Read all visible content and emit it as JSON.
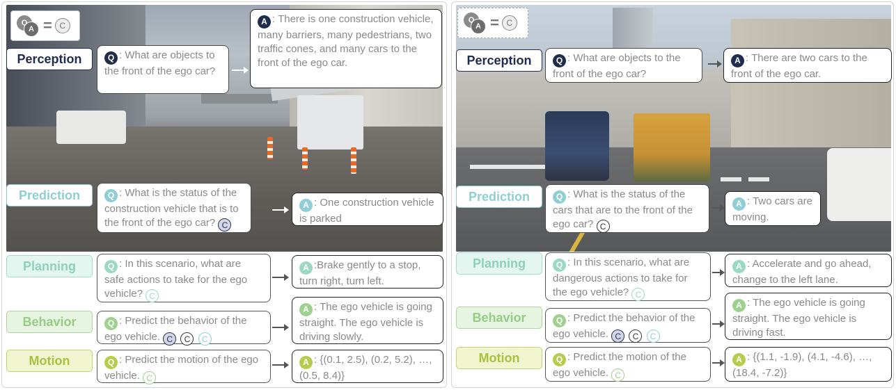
{
  "legend": {
    "q": "Q",
    "a": "A",
    "equals": "=",
    "c": "C"
  },
  "tags": {
    "perception": "Perception",
    "prediction": "Prediction",
    "planning": "Planning",
    "behavior": "Behavior",
    "motion": "Motion"
  },
  "icons": {
    "q": "Q",
    "a": "A",
    "c": "C"
  },
  "left": {
    "perception_q": ": What are objects to the front of the ego car?",
    "perception_a": ": There is one construction vehicle, many barriers, many pedestrians, two traffic cones, and many cars to the front of the ego car.",
    "prediction_q": ": What is the status of the construction vehicle that is to the front of the ego car?",
    "prediction_a": ": One construction vehicle is parked",
    "planning_q": ": In this scenario, what are safe actions to take for the ego vehicle?",
    "planning_a": ":Brake gently to a stop, turn right, turn left.",
    "behavior_q": ": Predict the behavior of the ego vehicle.",
    "behavior_a": ": The ego vehicle is going straight. The ego vehicle is driving slowly.",
    "motion_q": ": Predict the motion of the ego vehicle.",
    "motion_a": ": {(0.1, 2.5), (0.2, 5.2), …, (0.5, 8.4)}"
  },
  "right": {
    "perception_q": ": What are objects to the front of the ego car?",
    "perception_a": ": There are two cars to the front of the ego car.",
    "prediction_q": ": What is the status of the cars that are to the front of the ego car?",
    "prediction_a": ": Two cars are moving.",
    "planning_q": ": In this scenario, what are dangerous actions to take for the ego vehicle?",
    "planning_a": ": Accelerate and go ahead, change to the left lane.",
    "behavior_q": ": Predict the behavior of the ego vehicle.",
    "behavior_a": ": The ego vehicle is going straight. The ego vehicle is driving fast.",
    "motion_q": ": Predict the motion of the ego vehicle.",
    "motion_a": ": {(1.1, -1.9), (4.1, -4.6), …, (18.4, -7.2)}"
  },
  "colors": {
    "perception": "#1f2c4e",
    "prediction": "#8fcfd3",
    "planning": "#9cd8c2",
    "behavior": "#9ed18e",
    "motion": "#b6cc4d"
  }
}
